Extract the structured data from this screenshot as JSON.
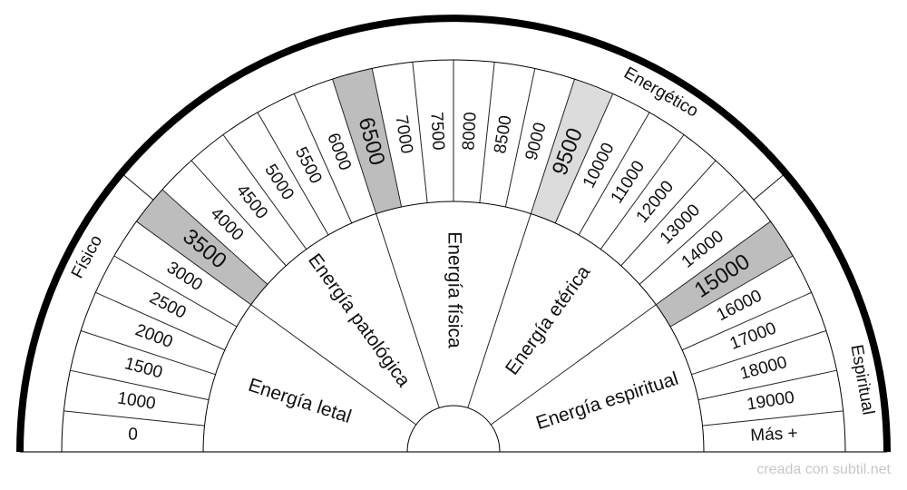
{
  "diagram": {
    "outer_values": [
      "0",
      "1000",
      "1500",
      "2000",
      "2500",
      "3000",
      "3500",
      "4000",
      "4500",
      "5000",
      "5500",
      "6000",
      "6500",
      "7000",
      "7500",
      "8000",
      "8500",
      "9000",
      "9500",
      "10000",
      "11000",
      "12000",
      "13000",
      "14000",
      "15000",
      "16000",
      "17000",
      "18000",
      "19000",
      "Más +"
    ],
    "highlighted": [
      {
        "value": "3500",
        "color": "#bdbdbd"
      },
      {
        "value": "6500",
        "color": "#bdbdbd"
      },
      {
        "value": "9500",
        "color": "#dcdcdc"
      },
      {
        "value": "15000",
        "color": "#bdbdbd"
      }
    ],
    "inner_sectors": [
      "Energía letal",
      "Energía patológica",
      "Energía física",
      "Energía etérica",
      "Energía espiritual"
    ],
    "categories": [
      "Físico",
      "Energético",
      "Espiritual"
    ]
  },
  "footer": {
    "credit": "creada con subtil.net"
  }
}
